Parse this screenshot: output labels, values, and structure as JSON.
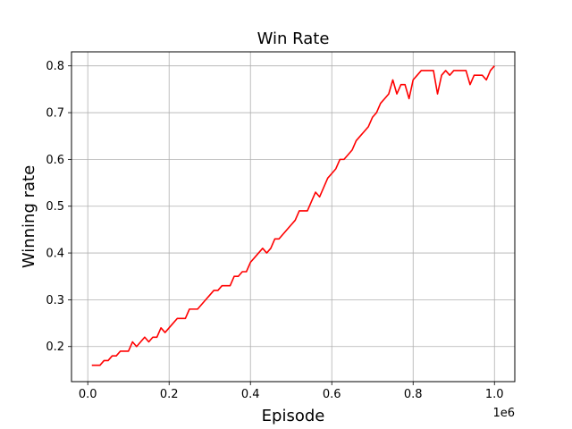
{
  "chart_data": {
    "type": "line",
    "title": "Win Rate",
    "xlabel": "Episode",
    "ylabel": "Winning rate",
    "x_offset_label": "1e6",
    "xlim": [
      -40000,
      1050000
    ],
    "ylim": [
      0.125,
      0.83
    ],
    "xticks": [
      0,
      200000,
      400000,
      600000,
      800000,
      1000000
    ],
    "xtick_labels": [
      "0.0",
      "0.2",
      "0.4",
      "0.6",
      "0.8",
      "1.0"
    ],
    "yticks": [
      0.2,
      0.3,
      0.4,
      0.5,
      0.6,
      0.7,
      0.8
    ],
    "ytick_labels": [
      "0.2",
      "0.3",
      "0.4",
      "0.5",
      "0.6",
      "0.7",
      "0.8"
    ],
    "grid": true,
    "legend": "none",
    "series": [
      {
        "color": "#ff0000",
        "x": [
          10000,
          20000,
          30000,
          40000,
          50000,
          60000,
          70000,
          80000,
          90000,
          100000,
          110000,
          120000,
          130000,
          140000,
          150000,
          160000,
          170000,
          180000,
          190000,
          200000,
          210000,
          220000,
          230000,
          240000,
          250000,
          260000,
          270000,
          280000,
          290000,
          300000,
          310000,
          320000,
          330000,
          340000,
          350000,
          360000,
          370000,
          380000,
          390000,
          400000,
          410000,
          420000,
          430000,
          440000,
          450000,
          460000,
          470000,
          480000,
          490000,
          500000,
          510000,
          520000,
          530000,
          540000,
          550000,
          560000,
          570000,
          580000,
          590000,
          600000,
          610000,
          620000,
          630000,
          640000,
          650000,
          660000,
          670000,
          680000,
          690000,
          700000,
          710000,
          720000,
          730000,
          740000,
          750000,
          760000,
          770000,
          780000,
          790000,
          800000,
          810000,
          820000,
          830000,
          840000,
          850000,
          860000,
          870000,
          880000,
          890000,
          900000,
          910000,
          920000,
          930000,
          940000,
          950000,
          960000,
          970000,
          980000,
          990000,
          1000000
        ],
        "y": [
          0.16,
          0.16,
          0.16,
          0.17,
          0.17,
          0.18,
          0.18,
          0.19,
          0.19,
          0.19,
          0.21,
          0.2,
          0.21,
          0.22,
          0.21,
          0.22,
          0.22,
          0.24,
          0.23,
          0.24,
          0.25,
          0.26,
          0.26,
          0.26,
          0.28,
          0.28,
          0.28,
          0.29,
          0.3,
          0.31,
          0.32,
          0.32,
          0.33,
          0.33,
          0.33,
          0.35,
          0.35,
          0.36,
          0.36,
          0.38,
          0.39,
          0.4,
          0.41,
          0.4,
          0.41,
          0.43,
          0.43,
          0.44,
          0.45,
          0.46,
          0.47,
          0.49,
          0.49,
          0.49,
          0.51,
          0.53,
          0.52,
          0.54,
          0.56,
          0.57,
          0.58,
          0.6,
          0.6,
          0.61,
          0.62,
          0.64,
          0.65,
          0.66,
          0.67,
          0.69,
          0.7,
          0.72,
          0.73,
          0.74,
          0.77,
          0.74,
          0.76,
          0.76,
          0.73,
          0.77,
          0.78,
          0.79,
          0.79,
          0.79,
          0.79,
          0.74,
          0.78,
          0.79,
          0.78,
          0.79,
          0.79,
          0.79,
          0.79,
          0.76,
          0.78,
          0.78,
          0.78,
          0.77,
          0.79,
          0.8
        ]
      }
    ]
  }
}
